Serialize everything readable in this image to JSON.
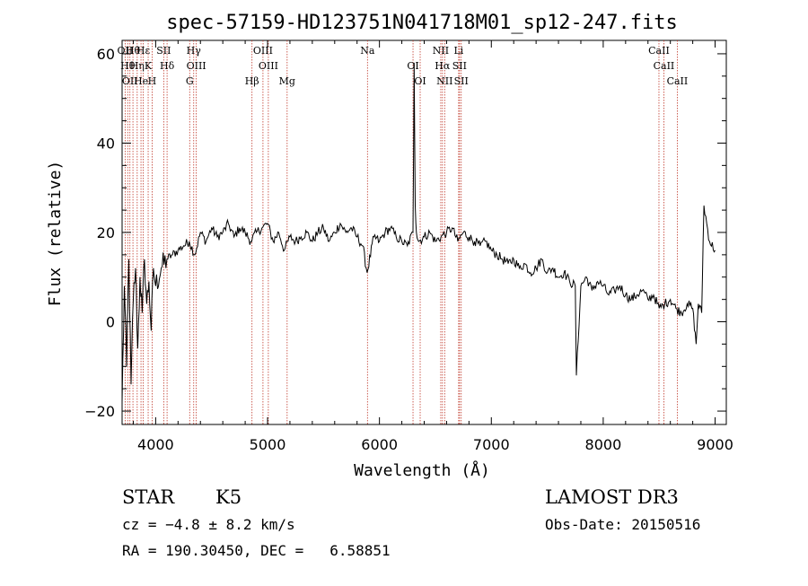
{
  "chart_data": {
    "type": "line",
    "title": "spec-57159-HD123751N041718M01_sp12-247.fits",
    "xlabel": "Wavelength (Å)",
    "ylabel": "Flux (relative)",
    "xlim": [
      3700,
      9100
    ],
    "ylim": [
      -23,
      63
    ],
    "xticks": [
      4000,
      5000,
      6000,
      7000,
      8000,
      9000
    ],
    "yticks": [
      -20,
      0,
      20,
      40,
      60
    ],
    "grid": false,
    "series": [
      {
        "x": [
          3700,
          3720,
          3740,
          3760,
          3780,
          3800,
          3820,
          3840,
          3860,
          3880,
          3900,
          3920,
          3940,
          3960,
          3980,
          4000,
          4050,
          4100,
          4150,
          4200,
          4250,
          4300,
          4350,
          4400,
          4450,
          4500,
          4550,
          4600,
          4650,
          4700,
          4750,
          4800,
          4850,
          4900,
          4950,
          5000,
          5050,
          5100,
          5150,
          5200,
          5250,
          5300,
          5350,
          5400,
          5450,
          5500,
          5550,
          5600,
          5650,
          5700,
          5750,
          5800,
          5850,
          5890,
          5950,
          6000,
          6050,
          6100,
          6150,
          6200,
          6250,
          6300,
          6310,
          6320,
          6330,
          6350,
          6400,
          6450,
          6500,
          6550,
          6600,
          6650,
          6700,
          6750,
          6800,
          6850,
          6900,
          6950,
          7000,
          7050,
          7100,
          7150,
          7200,
          7250,
          7300,
          7350,
          7400,
          7450,
          7500,
          7550,
          7600,
          7650,
          7700,
          7750,
          7760,
          7800,
          7850,
          7900,
          7950,
          8000,
          8050,
          8100,
          8150,
          8200,
          8250,
          8300,
          8350,
          8400,
          8450,
          8500,
          8550,
          8600,
          8650,
          8700,
          8750,
          8800,
          8830,
          8850,
          8880,
          8900,
          8950,
          9000
        ],
        "y": [
          -18,
          8,
          -10,
          14,
          -14,
          5,
          12,
          -6,
          10,
          2,
          14,
          4,
          9,
          -2,
          12,
          8,
          12,
          14,
          15,
          16,
          17,
          18,
          15,
          20,
          18,
          21,
          19,
          20,
          22,
          19,
          21,
          20,
          18,
          20,
          21,
          22,
          18,
          20,
          16,
          19,
          18,
          19,
          20,
          18,
          20,
          21,
          18,
          20,
          22,
          20,
          21,
          19,
          17,
          11,
          19,
          18,
          20,
          21,
          19,
          18,
          17,
          20,
          58,
          26,
          20,
          18,
          19,
          20,
          18,
          19,
          20,
          21,
          18,
          20,
          19,
          18,
          17,
          18,
          16,
          15,
          14,
          13,
          14,
          12,
          13,
          11,
          12,
          14,
          11,
          12,
          10,
          11,
          9,
          8,
          -12,
          8,
          10,
          7,
          9,
          8,
          6,
          7,
          8,
          6,
          5,
          6,
          7,
          5,
          6,
          3,
          4,
          5,
          3,
          2,
          4,
          3,
          -5,
          4,
          2,
          26,
          18,
          16
        ]
      }
    ],
    "lines": [
      {
        "x": 3727,
        "label": "OII"
      },
      {
        "x": 3750,
        "label": "Hθ"
      },
      {
        "x": 3770,
        "label": "OII"
      },
      {
        "x": 3797,
        "label": "Hθ"
      },
      {
        "x": 3835,
        "label": "Hη"
      },
      {
        "x": 3869,
        "label": "He"
      },
      {
        "x": 3889,
        "label": "Hε"
      },
      {
        "x": 3933,
        "label": "K"
      },
      {
        "x": 3968,
        "label": "H"
      },
      {
        "x": 4072,
        "label": "SII"
      },
      {
        "x": 4102,
        "label": "Hδ"
      },
      {
        "x": 4304,
        "label": "G"
      },
      {
        "x": 4340,
        "label": "Hγ"
      },
      {
        "x": 4363,
        "label": "OIII"
      },
      {
        "x": 4861,
        "label": "Hβ"
      },
      {
        "x": 4959,
        "label": "OIII"
      },
      {
        "x": 5007,
        "label": "OIII"
      },
      {
        "x": 5175,
        "label": "Mg"
      },
      {
        "x": 5893,
        "label": "Na"
      },
      {
        "x": 6300,
        "label": "OI"
      },
      {
        "x": 6364,
        "label": "OI"
      },
      {
        "x": 6548,
        "label": "NII"
      },
      {
        "x": 6563,
        "label": "Hα"
      },
      {
        "x": 6583,
        "label": "NII"
      },
      {
        "x": 6708,
        "label": "Li"
      },
      {
        "x": 6716,
        "label": "SII"
      },
      {
        "x": 6731,
        "label": "SII"
      },
      {
        "x": 8498,
        "label": "CaII"
      },
      {
        "x": 8542,
        "label": "CaII"
      },
      {
        "x": 8662,
        "label": "CaII"
      }
    ]
  },
  "info": {
    "object_class": "STAR",
    "subclass": "K5",
    "survey": "LAMOST DR3",
    "cz": "cz = −4.8 ± 8.2 km/s",
    "obs_date": "Obs-Date: 20150516",
    "coords": "RA = 190.30450, DEC =   6.58851"
  }
}
